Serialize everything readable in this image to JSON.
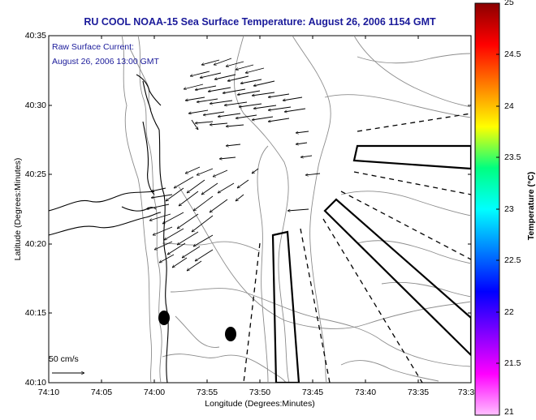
{
  "title": "RU COOL  NOAA-15  Sea Surface Temperature:  August 26, 2006 1154 GMT",
  "current_legend": {
    "line1": "Raw Surface Current:",
    "line2": "August 26, 2006 13:00 GMT"
  },
  "scale_arrow_label": "50 cm/s",
  "colorbar": {
    "label": "Temperature (°C)",
    "ticks": [
      "25",
      "24.5",
      "24",
      "23.5",
      "23",
      "22.5",
      "22",
      "21.5",
      "21"
    ],
    "colors": [
      "#8b0000",
      "#ff0000",
      "#ff8000",
      "#ffff00",
      "#00ff80",
      "#00ffff",
      "#0080ff",
      "#0000ff",
      "#8000ff",
      "#ff00ff",
      "#ffc0ff"
    ]
  },
  "chart_data": {
    "type": "map",
    "xlabel": "Longitude (Degrees:Minutes)",
    "ylabel": "Latitude (Degrees:Minutes)",
    "x_ticks": [
      "74:10",
      "74:05",
      "74:00",
      "73:55",
      "73:50",
      "73:45",
      "73:40",
      "73:35",
      "73:3"
    ],
    "y_ticks": [
      "40:35",
      "40:30",
      "40:25",
      "40:20",
      "40:15",
      "40:10"
    ]
  }
}
